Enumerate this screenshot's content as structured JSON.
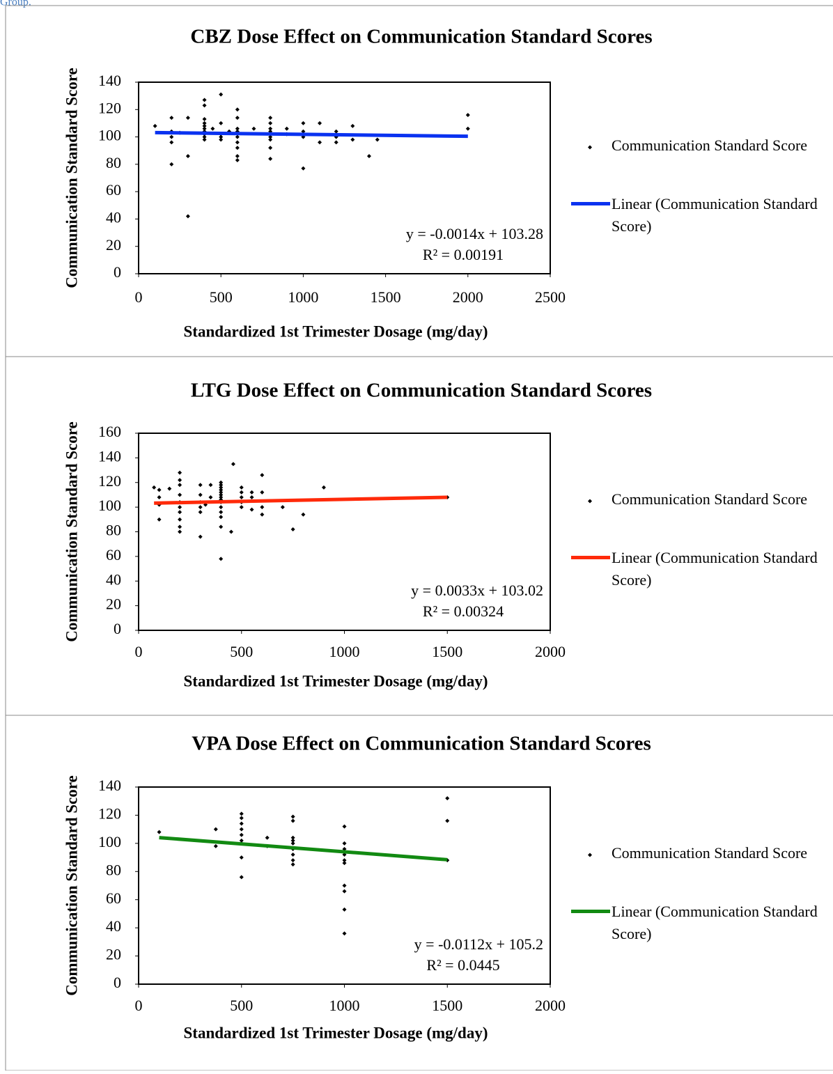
{
  "header_text": "Group.",
  "chart_data": [
    {
      "type": "scatter",
      "title": "CBZ Dose Effect on Communication Standard Scores",
      "x_label": "Standardized 1st Trimester Dosage (mg/day)",
      "y_label": "Communication Standard Score",
      "xlim": [
        0,
        2500
      ],
      "xticks": [
        0,
        500,
        1000,
        1500,
        2000,
        2500
      ],
      "ylim": [
        0,
        140
      ],
      "yticks": [
        0,
        20,
        40,
        60,
        80,
        100,
        120,
        140
      ],
      "equation": "y = -0.0014x + 103.28",
      "r_squared": "R² = 0.00191",
      "series": [
        {
          "name": "Communication Standard Score",
          "color": "#000000",
          "x": [
            100,
            200,
            200,
            200,
            200,
            200,
            250,
            300,
            300,
            300,
            400,
            400,
            400,
            400,
            400,
            400,
            400,
            400,
            400,
            400,
            450,
            500,
            500,
            500,
            500,
            500,
            550,
            600,
            600,
            600,
            600,
            600,
            600,
            600,
            600,
            600,
            700,
            800,
            800,
            800,
            800,
            800,
            800,
            800,
            800,
            900,
            900,
            1000,
            1000,
            1000,
            1000,
            1000,
            1100,
            1100,
            1200,
            1200,
            1200,
            1300,
            1300,
            1400,
            1450,
            2000,
            2000
          ],
          "values": [
            108,
            114,
            104,
            100,
            96,
            80,
            103,
            114,
            86,
            42,
            127,
            123,
            113,
            110,
            108,
            106,
            104,
            102,
            100,
            98,
            106,
            131,
            110,
            102,
            100,
            98,
            104,
            120,
            114,
            106,
            104,
            100,
            96,
            92,
            86,
            83,
            106,
            114,
            110,
            106,
            104,
            100,
            98,
            92,
            84,
            106,
            102,
            110,
            104,
            102,
            100,
            77,
            110,
            96,
            104,
            100,
            96,
            108,
            98,
            86,
            98,
            116,
            106
          ]
        },
        {
          "name": "Linear (Communication Standard Score)",
          "color": "#0a32f0",
          "x": [
            100,
            2000
          ],
          "values": [
            103.14,
            100.48
          ]
        }
      ]
    },
    {
      "type": "scatter",
      "title": "LTG Dose Effect on Communication Standard Scores",
      "x_label": "Standardized 1st Trimester Dosage (mg/day)",
      "y_label": "Communication Standard Score",
      "xlim": [
        0,
        2000
      ],
      "xticks": [
        0,
        500,
        1000,
        1500,
        2000
      ],
      "ylim": [
        0,
        160
      ],
      "yticks": [
        0,
        20,
        40,
        60,
        80,
        100,
        120,
        140,
        160
      ],
      "equation": "y = 0.0033x + 103.02",
      "r_squared": "R² = 0.00324",
      "series": [
        {
          "name": "Communication Standard Score",
          "color": "#000000",
          "x": [
            75,
            100,
            100,
            100,
            100,
            150,
            200,
            200,
            200,
            200,
            200,
            200,
            200,
            200,
            200,
            200,
            300,
            300,
            300,
            300,
            300,
            300,
            325,
            350,
            350,
            400,
            400,
            400,
            400,
            400,
            400,
            400,
            400,
            400,
            400,
            400,
            400,
            400,
            400,
            450,
            460,
            500,
            500,
            500,
            500,
            500,
            550,
            550,
            550,
            600,
            600,
            600,
            600,
            700,
            750,
            800,
            900,
            1500
          ],
          "values": [
            116,
            114,
            108,
            102,
            90,
            115,
            128,
            122,
            118,
            110,
            104,
            100,
            96,
            90,
            84,
            80,
            118,
            110,
            104,
            100,
            96,
            76,
            102,
            118,
            108,
            120,
            118,
            116,
            114,
            112,
            110,
            108,
            106,
            104,
            100,
            96,
            92,
            84,
            58,
            80,
            135,
            116,
            112,
            108,
            104,
            100,
            112,
            108,
            98,
            126,
            112,
            100,
            94,
            100,
            82,
            94,
            116,
            108
          ]
        },
        {
          "name": "Linear (Communication Standard Score)",
          "color": "#ff2a0a",
          "x": [
            75,
            1500
          ],
          "values": [
            103.27,
            107.97
          ]
        }
      ]
    },
    {
      "type": "scatter",
      "title": "VPA Dose Effect on Communication Standard Scores",
      "x_label": "Standardized 1st Trimester Dosage (mg/day)",
      "y_label": "Communication Standard Score",
      "xlim": [
        0,
        2000
      ],
      "xticks": [
        0,
        500,
        1000,
        1500,
        2000
      ],
      "ylim": [
        0,
        140
      ],
      "yticks": [
        0,
        20,
        40,
        60,
        80,
        100,
        120,
        140
      ],
      "equation": "y = -0.0112x + 105.2",
      "r_squared": "R² = 0.0445",
      "series": [
        {
          "name": "Communication Standard Score",
          "color": "#000000",
          "x": [
            100,
            375,
            375,
            500,
            500,
            500,
            500,
            500,
            500,
            500,
            500,
            500,
            625,
            625,
            750,
            750,
            750,
            750,
            750,
            750,
            750,
            750,
            750,
            1000,
            1000,
            1000,
            1000,
            1000,
            1000,
            1000,
            1000,
            1000,
            1000,
            1500,
            1500,
            1500
          ],
          "values": [
            108,
            110,
            98,
            121,
            118,
            114,
            110,
            106,
            102,
            100,
            90,
            76,
            104,
            98,
            119,
            116,
            104,
            102,
            100,
            96,
            92,
            88,
            85,
            112,
            100,
            96,
            92,
            88,
            86,
            70,
            66,
            53,
            36,
            132,
            116,
            88
          ]
        },
        {
          "name": "Linear (Communication Standard Score)",
          "color": "#128a12",
          "x": [
            100,
            1500
          ],
          "values": [
            104.08,
            88.4
          ]
        }
      ]
    }
  ]
}
